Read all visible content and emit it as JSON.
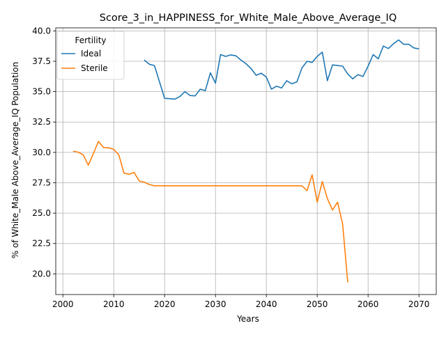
{
  "chart_data": {
    "type": "line",
    "title": "Score_3_in_HAPPINESS_for_White_Male_Above_Average_IQ",
    "xlabel": "Years",
    "ylabel": "% of White_Male Above_Average_IQ Population",
    "xlim": [
      1998.6,
      2073.4
    ],
    "ylim": [
      18.3,
      40.25
    ],
    "xticks": [
      2000,
      2010,
      2020,
      2030,
      2040,
      2050,
      2060,
      2070
    ],
    "yticks": [
      20.0,
      22.5,
      25.0,
      27.5,
      30.0,
      32.5,
      35.0,
      37.5,
      40.0
    ],
    "xtick_labels": [
      "2000",
      "2010",
      "2020",
      "2030",
      "2040",
      "2050",
      "2060",
      "2070"
    ],
    "ytick_labels": [
      "20.0",
      "22.5",
      "25.0",
      "27.5",
      "30.0",
      "32.5",
      "35.0",
      "37.5",
      "40.0"
    ],
    "grid": true,
    "legend": {
      "title": "Fertility",
      "position": "top-left"
    },
    "series": [
      {
        "name": "Ideal",
        "color": "#1f77b4",
        "x": [
          2016,
          2017,
          2018,
          2019,
          2020,
          2021,
          2022,
          2023,
          2024,
          2025,
          2026,
          2027,
          2028,
          2029,
          2030,
          2031,
          2032,
          2033,
          2034,
          2035,
          2036,
          2037,
          2038,
          2039,
          2040,
          2041,
          2042,
          2043,
          2044,
          2045,
          2046,
          2047,
          2048,
          2049,
          2050,
          2051,
          2052,
          2053,
          2054,
          2055,
          2056,
          2057,
          2058,
          2059,
          2060,
          2061,
          2062,
          2063,
          2064,
          2065,
          2066,
          2067,
          2068,
          2069,
          2070
        ],
        "y": [
          37.6,
          37.25,
          37.15,
          35.8,
          34.45,
          34.42,
          34.38,
          34.6,
          35.0,
          34.68,
          34.65,
          35.2,
          35.08,
          36.55,
          35.7,
          38.05,
          37.9,
          38.02,
          37.95,
          37.6,
          37.3,
          36.9,
          36.35,
          36.52,
          36.2,
          35.2,
          35.45,
          35.3,
          35.9,
          35.65,
          35.8,
          36.95,
          37.5,
          37.4,
          37.9,
          38.25,
          35.9,
          37.2,
          37.15,
          37.1,
          36.45,
          36.05,
          36.4,
          36.25,
          37.1,
          38.05,
          37.7,
          38.75,
          38.55,
          38.95,
          39.25,
          38.9,
          38.9,
          38.6,
          38.52
        ]
      },
      {
        "name": "Sterile",
        "color": "#ff7f0e",
        "x": [
          2002,
          2003,
          2004,
          2005,
          2006,
          2007,
          2008,
          2009,
          2010,
          2011,
          2012,
          2013,
          2014,
          2015,
          2016,
          2017,
          2018,
          2019,
          2020,
          2021,
          2022,
          2023,
          2024,
          2025,
          2026,
          2027,
          2028,
          2029,
          2030,
          2031,
          2032,
          2033,
          2034,
          2035,
          2036,
          2037,
          2038,
          2039,
          2040,
          2041,
          2042,
          2043,
          2044,
          2045,
          2046,
          2047,
          2048,
          2049,
          2050,
          2051,
          2052,
          2053,
          2054,
          2055,
          2056
        ],
        "y": [
          30.1,
          30.02,
          29.8,
          28.95,
          29.9,
          30.9,
          30.4,
          30.38,
          30.25,
          29.8,
          28.3,
          28.2,
          28.35,
          27.65,
          27.55,
          27.35,
          27.25,
          27.25,
          27.25,
          27.25,
          27.25,
          27.25,
          27.25,
          27.25,
          27.25,
          27.25,
          27.25,
          27.25,
          27.25,
          27.25,
          27.25,
          27.25,
          27.25,
          27.25,
          27.25,
          27.25,
          27.25,
          27.25,
          27.25,
          27.25,
          27.25,
          27.25,
          27.25,
          27.25,
          27.25,
          27.25,
          26.85,
          28.15,
          25.9,
          27.6,
          26.2,
          25.25,
          25.9,
          24.1,
          19.3
        ]
      }
    ]
  }
}
